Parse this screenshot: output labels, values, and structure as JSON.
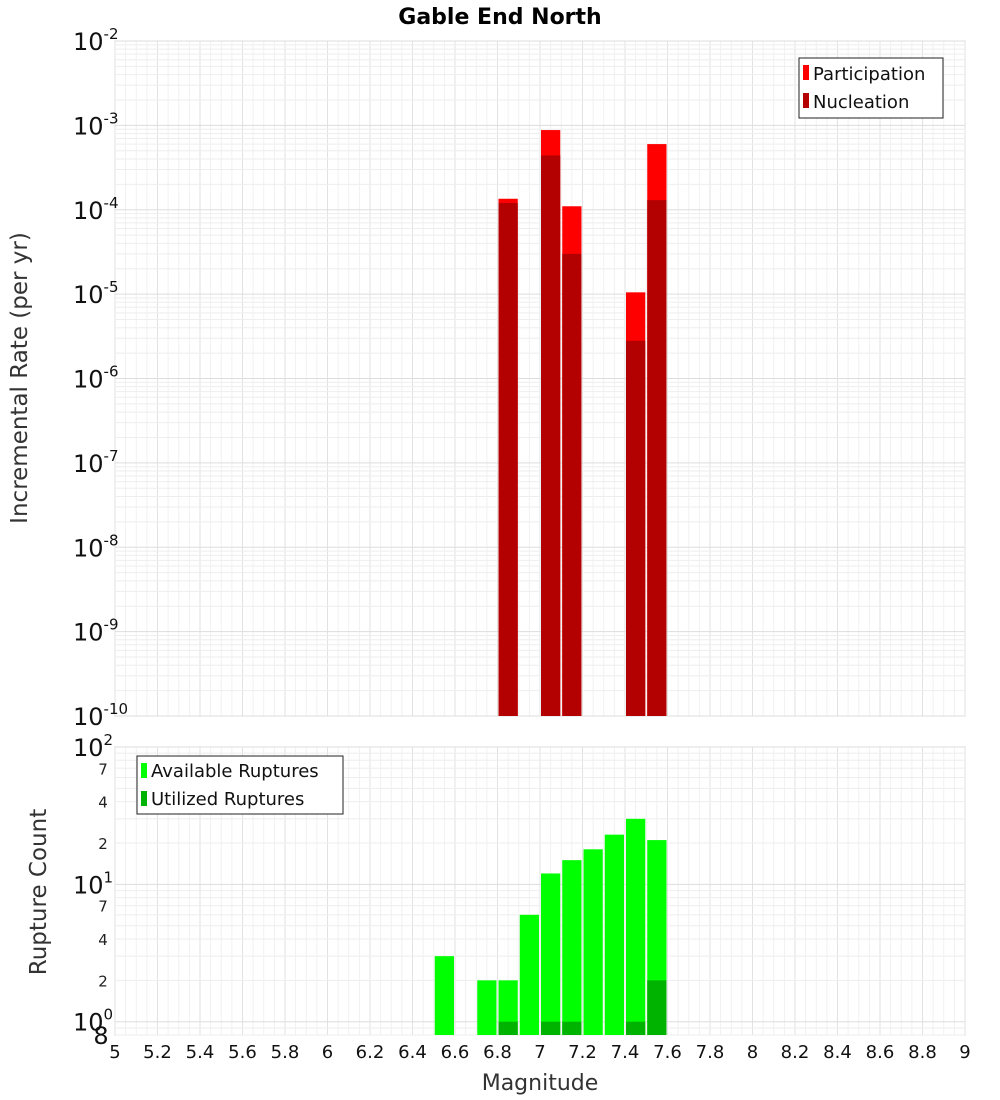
{
  "chart_data": [
    {
      "type": "bar",
      "title": "Gable End North",
      "ylabel": "Incremental Rate (per yr)",
      "xlabel": "",
      "yscale": "log",
      "ylim": [
        1e-10,
        0.01
      ],
      "xlim": [
        5,
        9
      ],
      "bar_width": 0.1,
      "grid": true,
      "legend_position": "top-right",
      "y_ticks": [
        {
          "base": "10",
          "exp": "-2"
        },
        {
          "base": "10",
          "exp": "-3"
        },
        {
          "base": "10",
          "exp": "-4"
        },
        {
          "base": "10",
          "exp": "-5"
        },
        {
          "base": "10",
          "exp": "-6"
        },
        {
          "base": "10",
          "exp": "-7"
        },
        {
          "base": "10",
          "exp": "-8"
        },
        {
          "base": "10",
          "exp": "-9"
        },
        {
          "base": "10",
          "exp": "-10"
        }
      ],
      "series": [
        {
          "name": "Participation",
          "color": "#ff0000",
          "x": [
            6.85,
            7.05,
            7.15,
            7.45,
            7.55
          ],
          "values": [
            0.000135,
            0.00088,
            0.00011,
            1.05e-05,
            0.0006
          ]
        },
        {
          "name": "Nucleation",
          "color": "#b30000",
          "x": [
            6.85,
            7.05,
            7.15,
            7.45,
            7.55
          ],
          "values": [
            0.00012,
            0.00044,
            3e-05,
            2.8e-06,
            0.00013
          ]
        }
      ]
    },
    {
      "type": "bar",
      "title": "",
      "ylabel": "Rupture Count",
      "xlabel": "Magnitude",
      "yscale": "log",
      "ylim": [
        0.8,
        100
      ],
      "xlim": [
        5,
        9
      ],
      "bar_width": 0.1,
      "grid": true,
      "legend_position": "top-left",
      "x_ticks": [
        "5",
        "5.2",
        "5.4",
        "5.6",
        "5.8",
        "6",
        "6.2",
        "6.4",
        "6.6",
        "6.8",
        "7",
        "7.2",
        "7.4",
        "7.6",
        "7.8",
        "8",
        "8.2",
        "8.4",
        "8.6",
        "8.8",
        "9"
      ],
      "y_major_ticks": [
        {
          "value": 100,
          "base": "10",
          "exp": "2"
        },
        {
          "value": 10,
          "base": "10",
          "exp": "1"
        },
        {
          "value": 1,
          "base": "10",
          "exp": "0"
        }
      ],
      "y_minor_ticks": [
        {
          "value": 70,
          "label": "7"
        },
        {
          "value": 40,
          "label": "4"
        },
        {
          "value": 20,
          "label": "2"
        },
        {
          "value": 7,
          "label": "7"
        },
        {
          "value": 4,
          "label": "4"
        },
        {
          "value": 2,
          "label": "2"
        },
        {
          "value": 0.8,
          "label": "8"
        }
      ],
      "series": [
        {
          "name": "Available Ruptures",
          "color": "#00ff00",
          "x": [
            6.55,
            6.75,
            6.85,
            6.95,
            7.05,
            7.15,
            7.25,
            7.35,
            7.45,
            7.55
          ],
          "values": [
            3,
            2,
            2,
            6,
            12,
            15,
            18,
            23,
            30,
            21
          ]
        },
        {
          "name": "Utilized Ruptures",
          "color": "#00b300",
          "x": [
            6.85,
            7.05,
            7.15,
            7.45,
            7.55
          ],
          "values": [
            1,
            1,
            1,
            1,
            2
          ]
        }
      ]
    }
  ]
}
